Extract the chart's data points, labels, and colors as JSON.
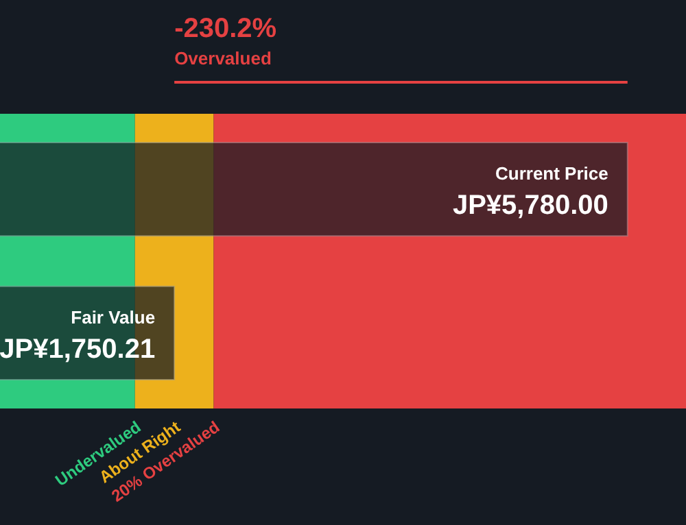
{
  "chart_data": {
    "type": "bar",
    "orientation": "horizontal",
    "categories": [
      "Current Price",
      "Fair Value"
    ],
    "values": [
      5780.0,
      1750.21
    ],
    "colors": [
      "#151b23",
      "#151b23"
    ],
    "value_labels": [
      "JP¥5,780.00",
      "JP¥1,750.21"
    ],
    "xlim": [
      200,
      6300
    ],
    "bands": [
      {
        "axis": "x",
        "from": 200,
        "to": 1400.17,
        "label": "Undervalued",
        "color": "#2ecb7f"
      },
      {
        "axis": "x",
        "from": 1400.17,
        "to": 2100.25,
        "label": "About Right",
        "color": "#edb11c"
      },
      {
        "axis": "x",
        "from": 2100.25,
        "to": 6300,
        "label": "20% Overvalued",
        "color": "#e54142"
      }
    ],
    "annotations": [
      "-230.2%",
      "Overvalued"
    ],
    "grid": false,
    "tick_labels": false
  }
}
